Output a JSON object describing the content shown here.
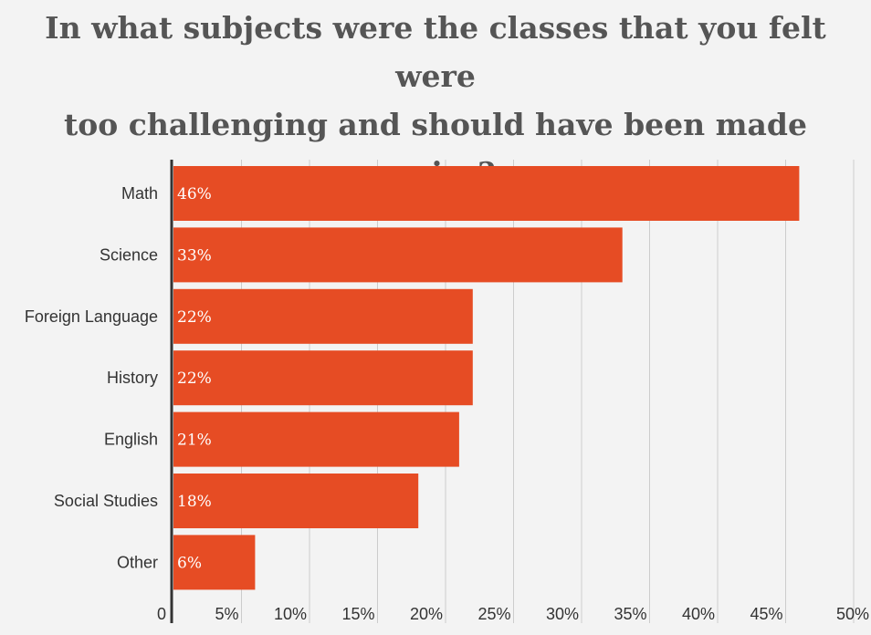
{
  "chart_data": {
    "type": "bar",
    "orientation": "horizontal",
    "title_lines": [
      "In what subjects were the classes that you felt were",
      "too challenging and should have been made easier?"
    ],
    "categories": [
      "Math",
      "Science",
      "Foreign Language",
      "History",
      "English",
      "Social Studies",
      "Other"
    ],
    "values": [
      46,
      33,
      22,
      22,
      21,
      18,
      6
    ],
    "value_labels": [
      "46%",
      "33%",
      "22%",
      "22%",
      "21%",
      "18%",
      "6%"
    ],
    "xlim": [
      0,
      50
    ],
    "x_ticks": [
      0,
      5,
      10,
      15,
      20,
      25,
      30,
      35,
      40,
      45,
      50
    ],
    "x_tick_labels": [
      "0",
      "5%",
      "10%",
      "15%",
      "20%",
      "25%",
      "30%",
      "35%",
      "40%",
      "45%",
      "50%"
    ],
    "grid": true,
    "legend": "none",
    "xlabel": "",
    "ylabel": ""
  },
  "colors": {
    "bar": "#e64c24",
    "grid": "#cccccc",
    "axis": "#333333",
    "background": "#f3f3f3",
    "title": "#555555"
  }
}
